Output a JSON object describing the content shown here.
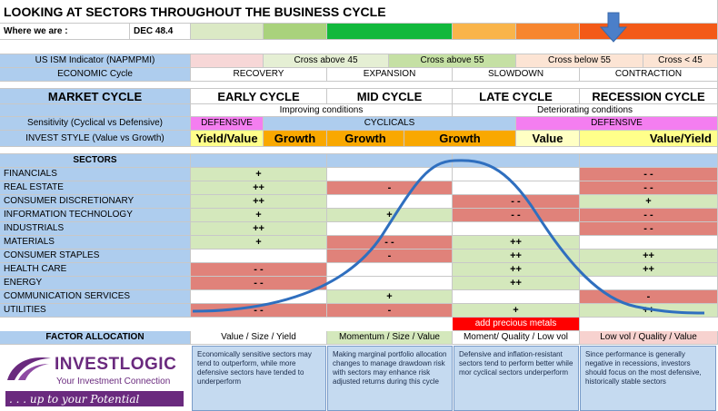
{
  "title": "LOOKING AT SECTORS THROUGHOUT THE BUSINESS CYCLE",
  "where": {
    "label": "Where we are :",
    "value": "DEC 48.4"
  },
  "ism": {
    "label": "US ISM Indicator (NAPMPMI)",
    "cells": [
      "",
      "Cross above 45",
      "Cross above 55",
      "Cross below 55",
      "Cross < 45"
    ]
  },
  "economic": {
    "label": "ECONOMIC Cycle",
    "phases": [
      "RECOVERY",
      "EXPANSION",
      "SLOWDOWN",
      "CONTRACTION"
    ]
  },
  "market": {
    "label": "MARKET CYCLE",
    "phases": [
      "EARLY CYCLE",
      "MID CYCLE",
      "LATE CYCLE",
      "RECESSION CYCLE"
    ]
  },
  "conditions": {
    "improving": "Improving conditions",
    "deteriorating": "Deteriorating conditions"
  },
  "sensitivity": {
    "label": "Sensitivity (Cyclical vs Defensive)",
    "defensive_early": "DEFENSIVE",
    "cyclicals": "CYCLICALS",
    "defensive_late": "DEFENSIVE"
  },
  "invest_style": {
    "label": "INVEST STYLE (Value vs Growth)",
    "cells": [
      "Yield/Value",
      "Growth",
      "Growth",
      "Growth",
      "Value",
      "Value/Yield"
    ]
  },
  "sectors_header": "SECTORS",
  "sectors": [
    {
      "name": "FINANCIALS",
      "early": "+",
      "mid": "",
      "late": "",
      "rec": "- -"
    },
    {
      "name": "REAL ESTATE",
      "early": "++",
      "mid": "-",
      "late": "",
      "rec": "- -"
    },
    {
      "name": "CONSUMER DISCRETIONARY",
      "early": "++",
      "mid": "",
      "late": "- -",
      "rec": "+"
    },
    {
      "name": "INFORMATION TECHNOLOGY",
      "early": "+",
      "mid": "+",
      "late": "- -",
      "rec": "- -"
    },
    {
      "name": "INDUSTRIALS",
      "early": "++",
      "mid": "",
      "late": "",
      "rec": "- -"
    },
    {
      "name": "MATERIALS",
      "early": "+",
      "mid": "- -",
      "late": "++",
      "rec": ""
    },
    {
      "name": "CONSUMER STAPLES",
      "early": "",
      "mid": "-",
      "late": "++",
      "rec": "++"
    },
    {
      "name": "HEALTH CARE",
      "early": "- -",
      "mid": "",
      "late": "++",
      "rec": "++"
    },
    {
      "name": "ENERGY",
      "early": "- -",
      "mid": "",
      "late": "++",
      "rec": ""
    },
    {
      "name": "COMMUNICATION SERVICES",
      "early": "",
      "mid": "+",
      "late": "",
      "rec": "-"
    },
    {
      "name": "UTILITIES",
      "early": "- -",
      "mid": "-",
      "late": "+",
      "rec": "++"
    }
  ],
  "precious_metals": "add precious metals",
  "factor": {
    "label": "FACTOR ALLOCATION",
    "cells": [
      "Value / Size / Yield",
      "Momentum / Size / Value",
      "Moment/ Quality / Low vol",
      "Low vol / Quality / Value"
    ]
  },
  "descriptions": [
    "Economically sensitive sectors may tend to outperform, while more defensive sectors have tended to underperform",
    "Making marginal portfolio allocation changes to manage drawdown risk with sectors may enhance risk adjusted returns during this cycle",
    "Defensive and inflation-resistant sectors tend to perform better while mor cyclical sectors underperform",
    "Since performance is generally negative in recessions, investors should focus on the most defensive, historically stable sectors"
  ],
  "logo": {
    "name": "INVESTLOGIC",
    "tagline": "Your Investment Connection",
    "slogan": ". . . up to your Potential"
  },
  "colors": {
    "red": "#e0827a",
    "green": "#d4e8bc",
    "blue": "#aecdee",
    "magenta": "#f47ef0",
    "orange": "#f9a800",
    "yellow": "#ffff8a",
    "curve": "#2f6fbf"
  }
}
